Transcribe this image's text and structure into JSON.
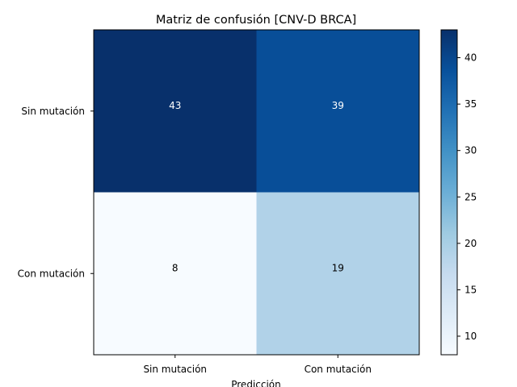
{
  "chart_data": {
    "type": "heatmap",
    "title": "Matriz de confusión [CNV-D BRCA]",
    "xlabel": "Predicción",
    "ylabel": "",
    "x_categories": [
      "Sin mutación",
      "Con mutación"
    ],
    "y_categories": [
      "Sin mutación",
      "Con mutación"
    ],
    "values": [
      [
        43,
        39
      ],
      [
        8,
        19
      ]
    ],
    "colormap": "Blues",
    "color_range": [
      8,
      43
    ],
    "colorbar_ticks": [
      10,
      15,
      20,
      25,
      30,
      35,
      40
    ],
    "grid": false,
    "colors": {
      "max": "#08306b",
      "min": "#f7fbff",
      "light_text": "#ffffff",
      "dark_text": "#000000"
    }
  }
}
